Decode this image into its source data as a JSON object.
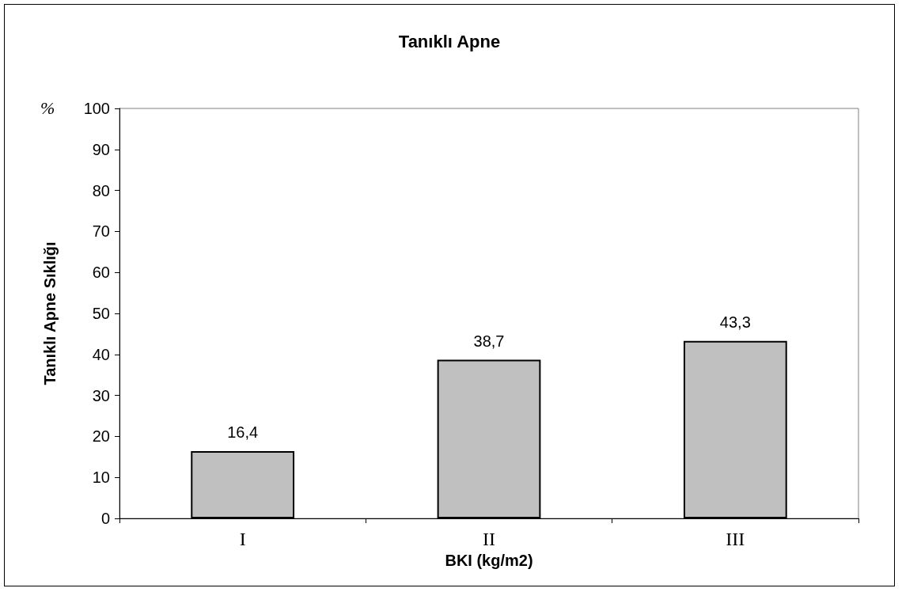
{
  "chart_data": {
    "type": "bar",
    "title": "Tanıklı Apne",
    "xlabel": "BKI (kg/m2)",
    "ylabel": "Tanıklı Apne Sıklığı",
    "annotations": [
      "%"
    ],
    "categories": [
      "I",
      "II",
      "III"
    ],
    "values": [
      16.4,
      38.7,
      43.3
    ],
    "value_labels": [
      "16,4",
      "38,7",
      "43,3"
    ],
    "color": "#c0c0c0",
    "ylim": [
      0,
      100
    ],
    "yticks": [
      0,
      10,
      20,
      30,
      40,
      50,
      60,
      70,
      80,
      90,
      100
    ],
    "grid": false
  }
}
